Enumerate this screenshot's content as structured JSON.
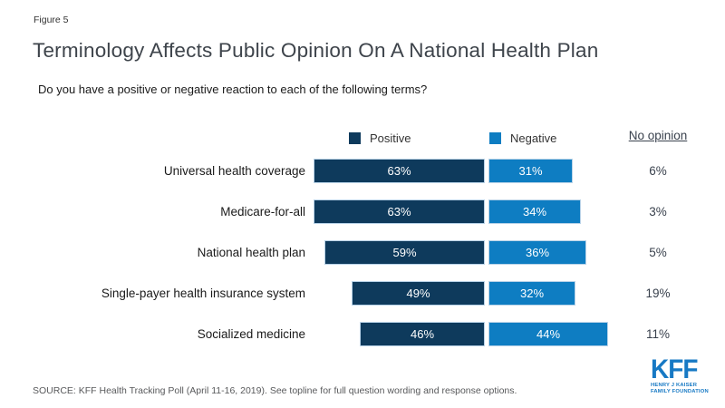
{
  "figure_label": "Figure 5",
  "title": "Terminology Affects Public Opinion On A National Health Plan",
  "subtitle": "Do you have a positive or negative reaction to each of the following terms?",
  "legend": {
    "positive_label": "Positive",
    "negative_label": "Negative",
    "no_opinion_label": "No opinion"
  },
  "colors": {
    "positive": "#0E3A5C",
    "negative": "#0E7DC2",
    "logo_blue": "#1779C4"
  },
  "chart_data": {
    "type": "bar",
    "orientation": "horizontal_stacked",
    "value_suffix": "%",
    "categories": [
      "Universal health coverage",
      "Medicare-for-all",
      "National health plan",
      "Single-payer health insurance system",
      "Socialized medicine"
    ],
    "series": [
      {
        "name": "Positive",
        "color": "#0E3A5C",
        "values": [
          63,
          63,
          59,
          49,
          46
        ]
      },
      {
        "name": "Negative",
        "color": "#0E7DC2",
        "values": [
          31,
          34,
          36,
          32,
          44
        ]
      }
    ],
    "no_opinion_values": [
      6,
      3,
      5,
      19,
      11
    ],
    "title": "Terminology Affects Public Opinion On A National Health Plan",
    "xlabel": "",
    "ylabel": "",
    "legend_position": "top",
    "grid": false
  },
  "source": "SOURCE: KFF Health Tracking Poll (April 11-16, 2019). See topline for full question wording and response options.",
  "logo": {
    "name": "KFF",
    "subtitle_line1": "HENRY J KAISER",
    "subtitle_line2": "FAMILY FOUNDATION"
  }
}
